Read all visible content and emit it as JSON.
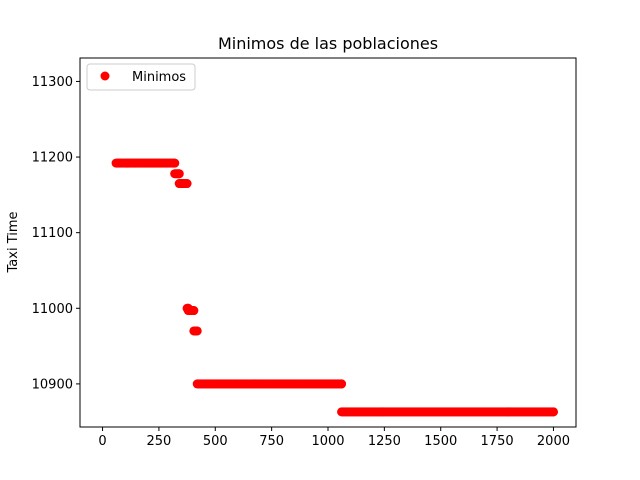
{
  "chart_data": {
    "type": "scatter",
    "title": "Minimos de las poblaciones",
    "xlabel": "",
    "ylabel": "Taxi Time",
    "xlim": [
      -100,
      2100
    ],
    "ylim": [
      10843,
      11331
    ],
    "xticks": [
      0,
      250,
      500,
      750,
      1000,
      1250,
      1500,
      1750,
      2000
    ],
    "yticks": [
      10900,
      11000,
      11100,
      11200,
      11300
    ],
    "grid": false,
    "legend_position": "upper-left",
    "series": [
      {
        "name": "Minimos",
        "color": "#ff0000",
        "runs": [
          {
            "x_start": 60,
            "x_end": 320,
            "y": 11192
          },
          {
            "x_start": 320,
            "x_end": 340,
            "y": 11178
          },
          {
            "x_start": 340,
            "x_end": 375,
            "y": 11165
          },
          {
            "x_start": 375,
            "x_end": 380,
            "y": 11000
          },
          {
            "x_start": 380,
            "x_end": 405,
            "y": 10997
          },
          {
            "x_start": 405,
            "x_end": 420,
            "y": 10970
          },
          {
            "x_start": 420,
            "x_end": 1060,
            "y": 10900
          },
          {
            "x_start": 1060,
            "x_end": 2000,
            "y": 10863
          }
        ]
      }
    ]
  }
}
